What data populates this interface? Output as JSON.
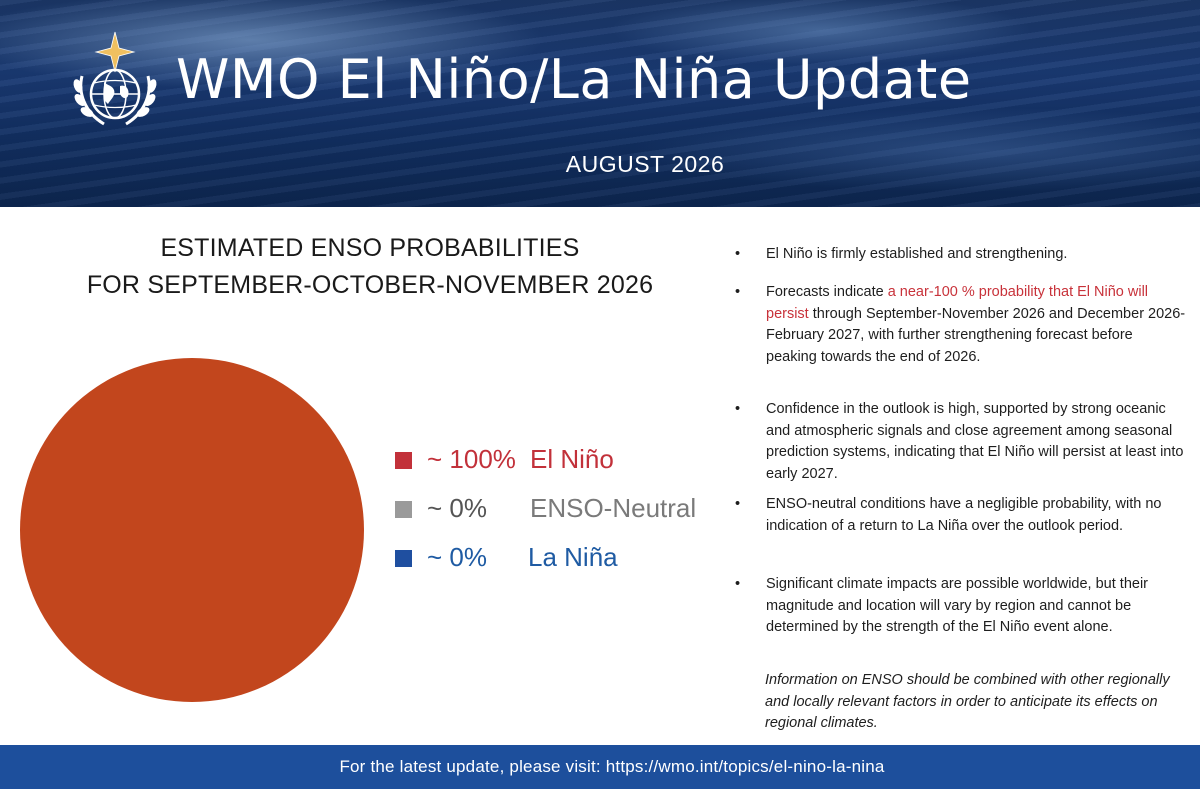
{
  "header": {
    "title": "WMO El Niño/La Niña Update",
    "date": "AUGUST 2026"
  },
  "chart_data": {
    "type": "pie",
    "title": "ESTIMATED ENSO PROBABILITIES FOR SEPTEMBER-OCTOBER-NOVEMBER 2026",
    "title_lines": [
      "ESTIMATED ENSO PROBABILITIES",
      "FOR SEPTEMBER-OCTOBER-NOVEMBER 2026"
    ],
    "series": [
      {
        "name": "El Niño",
        "label": "~ 100%",
        "value": 100,
        "color": "#c2461d",
        "swatch": "#c2313a",
        "text_color": "#c2313a"
      },
      {
        "name": "ENSO-Neutral",
        "label": "~ 0%",
        "value": 0,
        "color": "#9a9a9a",
        "swatch": "#9a9a9a",
        "text_color": "#7a7a7a"
      },
      {
        "name": "La Niña",
        "label": "~ 0%",
        "value": 0,
        "color": "#1f4fa0",
        "swatch": "#1f4fa0",
        "text_color": "#1f5ba3"
      }
    ],
    "legend_position": "right"
  },
  "bullets": [
    {
      "marker": "•",
      "segments": [
        {
          "text": "El Niño is firmly established and strengthening.",
          "highlight": false
        }
      ]
    },
    {
      "marker": "•",
      "segments": [
        {
          "text": "Forecasts indicate ",
          "highlight": false
        },
        {
          "text": "a near-100 % probability that El Niño will persist",
          "highlight": true
        },
        {
          "text": " through September-November 2026 and December 2026-February 2027, with further strengthening forecast before peaking towards the end of 2026.",
          "highlight": false
        }
      ]
    },
    {
      "marker": "•",
      "segments": [
        {
          "text": "Confidence in the outlook is high, supported by strong oceanic and atmospheric signals and close agreement among seasonal prediction systems, indicating that El Niño will persist at least into early 2027.",
          "highlight": false
        }
      ]
    },
    {
      "marker": "•",
      "segments": [
        {
          "text": "ENSO-neutral conditions have a negligible probability, with no indication of a return to La Niña over the outlook period.",
          "highlight": false
        }
      ]
    },
    {
      "marker": "•",
      "segments": [
        {
          "text": "Significant climate impacts are possible worldwide, but their magnitude and location will vary by region and cannot be determined by the strength of the El Niño event alone.",
          "highlight": false
        }
      ]
    }
  ],
  "note": "Information on ENSO should be combined with other regionally and locally relevant factors in order to anticipate its effects on regional climates.",
  "footer": {
    "text": "For the latest update, please visit: https://wmo.int/topics/el-nino-la-nina"
  },
  "colors": {
    "banner": "#1a3a74",
    "footer": "#1d4f9c",
    "highlight": "#c8323a"
  },
  "icons": {
    "logo": "wmo-emblem-icon"
  }
}
